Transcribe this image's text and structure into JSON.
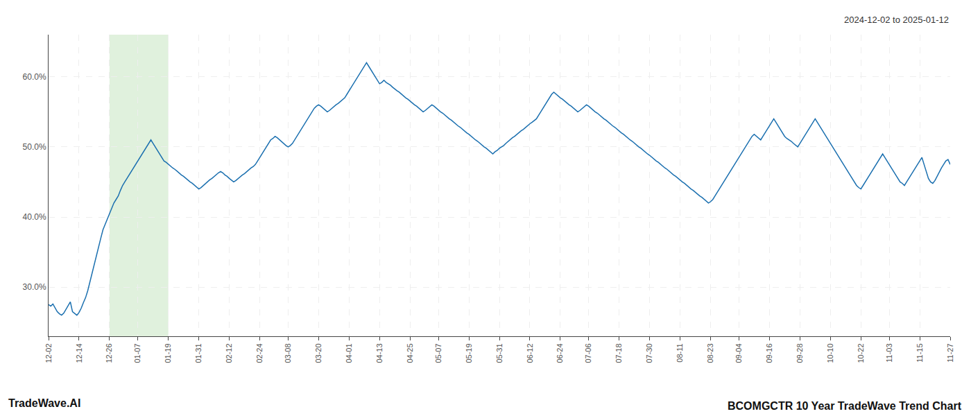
{
  "chart_data": {
    "type": "line",
    "title": "BCOMGCTR 10 Year TradeWave Trend Chart",
    "subtitle": "2024-12-02 to 2025-01-12",
    "annotations": [
      "TradeWave.AI"
    ],
    "categories": [
      "12-02",
      null,
      null,
      null,
      null,
      null,
      null,
      null,
      null,
      null,
      null,
      null,
      null,
      null,
      "12-14",
      null,
      null,
      null,
      null,
      null,
      null,
      null,
      null,
      null,
      null,
      null,
      null,
      null,
      "12-26",
      null,
      null,
      null,
      null,
      null,
      null,
      null,
      null,
      null,
      null,
      null,
      null,
      "01-07",
      null,
      null,
      null,
      null,
      null,
      null,
      null,
      null,
      null,
      null,
      null,
      null,
      null,
      "01-19",
      null,
      null,
      null,
      null,
      null,
      null,
      null,
      null,
      null,
      null,
      null,
      null,
      null,
      "01-31",
      null,
      null,
      null,
      null,
      null,
      null,
      null,
      null,
      null,
      null,
      null,
      null,
      null,
      "02-12",
      null,
      null,
      null,
      null,
      null,
      null,
      null,
      null,
      null,
      null,
      null,
      null,
      null,
      "02-24",
      null,
      null,
      null,
      null,
      null,
      null,
      null,
      null,
      null,
      null,
      null,
      null,
      "03-08",
      null,
      null,
      null,
      null,
      null,
      null,
      null,
      null,
      null,
      null,
      null,
      null,
      null,
      "03-20",
      null,
      null,
      null,
      null,
      null,
      null,
      null,
      null,
      null,
      null,
      null,
      null,
      null,
      "04-01",
      null,
      null,
      null,
      null,
      null,
      null,
      null,
      null,
      null,
      null,
      null,
      null,
      null,
      "04-13",
      null,
      null,
      null,
      null,
      null,
      null,
      null,
      null,
      null,
      null,
      null,
      null,
      null,
      "04-25",
      null,
      null,
      null,
      null,
      null,
      null,
      null,
      null,
      null,
      null,
      null,
      null,
      "05-07",
      null,
      null,
      null,
      null,
      null,
      null,
      null,
      null,
      null,
      null,
      null,
      null,
      null,
      "05-19",
      null,
      null,
      null,
      null,
      null,
      null,
      null,
      null,
      null,
      null,
      null,
      null,
      null,
      "05-31",
      null,
      null,
      null,
      null,
      null,
      null,
      null,
      null,
      null,
      null,
      null,
      null,
      null,
      "06-12",
      null,
      null,
      null,
      null,
      null,
      null,
      null,
      null,
      null,
      null,
      null,
      null,
      null,
      "06-24",
      null,
      null,
      null,
      null,
      null,
      null,
      null,
      null,
      null,
      null,
      null,
      null,
      "07-06",
      null,
      null,
      null,
      null,
      null,
      null,
      null,
      null,
      null,
      null,
      null,
      null,
      null,
      "07-18",
      null,
      null,
      null,
      null,
      null,
      null,
      null,
      null,
      null,
      null,
      null,
      null,
      null,
      "07-30",
      null,
      null,
      null,
      null,
      null,
      null,
      null,
      null,
      null,
      null,
      null,
      null,
      null,
      "08-11",
      null,
      null,
      null,
      null,
      null,
      null,
      null,
      null,
      null,
      null,
      null,
      null,
      null,
      "08-23",
      null,
      null,
      null,
      null,
      null,
      null,
      null,
      null,
      null,
      null,
      null,
      null,
      "09-04",
      null,
      null,
      null,
      null,
      null,
      null,
      null,
      null,
      null,
      null,
      null,
      null,
      null,
      "09-16",
      null,
      null,
      null,
      null,
      null,
      null,
      null,
      null,
      null,
      null,
      null,
      null,
      null,
      "09-28",
      null,
      null,
      null,
      null,
      null,
      null,
      null,
      null,
      null,
      null,
      null,
      null,
      null,
      "10-10",
      null,
      null,
      null,
      null,
      null,
      null,
      null,
      null,
      null,
      null,
      null,
      null,
      null,
      "10-22",
      null,
      null,
      null,
      null,
      null,
      null,
      null,
      null,
      null,
      null,
      null,
      null,
      "11-03",
      null,
      null,
      null,
      null,
      null,
      null,
      null,
      null,
      null,
      null,
      null,
      null,
      null,
      "11-15",
      null,
      null,
      null,
      null,
      null,
      null,
      null,
      null,
      null,
      null,
      null,
      null,
      null,
      "11-27"
    ],
    "values": [
      27.5,
      27.3,
      27.6,
      27.1,
      26.5,
      26.2,
      26.0,
      26.3,
      26.8,
      27.4,
      27.9,
      26.5,
      26.2,
      26.0,
      26.4,
      27.0,
      27.8,
      28.5,
      29.5,
      30.8,
      32.0,
      33.2,
      34.5,
      35.8,
      37.0,
      38.2,
      39.0,
      39.8,
      40.5,
      41.2,
      42.0,
      42.5,
      43.0,
      43.8,
      44.5,
      45.0,
      45.5,
      46.0,
      46.5,
      47.0,
      47.5,
      48.0,
      48.5,
      49.0,
      49.5,
      50.0,
      50.5,
      51.0,
      50.5,
      50.0,
      49.5,
      49.0,
      48.5,
      48.0,
      47.8,
      47.5,
      47.2,
      47.0,
      46.8,
      46.5,
      46.2,
      46.0,
      45.8,
      45.5,
      45.2,
      45.0,
      44.8,
      44.5,
      44.2,
      44.0,
      44.2,
      44.5,
      44.8,
      45.0,
      45.3,
      45.5,
      45.8,
      46.0,
      46.3,
      46.5,
      46.3,
      46.0,
      45.8,
      45.5,
      45.2,
      45.0,
      45.2,
      45.5,
      45.8,
      46.0,
      46.2,
      46.5,
      46.8,
      47.0,
      47.2,
      47.5,
      48.0,
      48.5,
      49.0,
      49.5,
      50.0,
      50.5,
      51.0,
      51.2,
      51.5,
      51.3,
      51.0,
      50.8,
      50.5,
      50.2,
      50.0,
      50.2,
      50.5,
      51.0,
      51.5,
      52.0,
      52.5,
      53.0,
      53.5,
      54.0,
      54.5,
      55.0,
      55.5,
      55.8,
      56.0,
      55.8,
      55.5,
      55.2,
      55.0,
      55.2,
      55.5,
      55.8,
      56.0,
      56.2,
      56.5,
      56.8,
      57.0,
      57.5,
      58.0,
      58.5,
      59.0,
      59.5,
      60.0,
      60.5,
      61.0,
      61.5,
      62.0,
      61.5,
      61.0,
      60.5,
      60.0,
      59.5,
      59.0,
      59.2,
      59.5,
      59.2,
      59.0,
      58.8,
      58.5,
      58.2,
      58.0,
      57.8,
      57.5,
      57.2,
      57.0,
      56.8,
      56.5,
      56.2,
      56.0,
      55.8,
      55.5,
      55.2,
      55.0,
      55.2,
      55.5,
      55.8,
      56.0,
      55.8,
      55.5,
      55.2,
      55.0,
      54.8,
      54.5,
      54.2,
      54.0,
      53.8,
      53.5,
      53.2,
      53.0,
      52.8,
      52.5,
      52.2,
      52.0,
      51.8,
      51.5,
      51.2,
      51.0,
      50.8,
      50.5,
      50.2,
      50.0,
      49.8,
      49.5,
      49.3,
      49.0,
      49.3,
      49.5,
      49.8,
      50.0,
      50.2,
      50.5,
      50.8,
      51.0,
      51.3,
      51.5,
      51.8,
      52.0,
      52.3,
      52.5,
      52.8,
      53.0,
      53.3,
      53.5,
      53.8,
      54.0,
      54.5,
      55.0,
      55.5,
      56.0,
      56.5,
      57.0,
      57.5,
      57.8,
      57.5,
      57.2,
      57.0,
      56.8,
      56.5,
      56.2,
      56.0,
      55.8,
      55.5,
      55.2,
      55.0,
      55.2,
      55.5,
      55.8,
      56.0,
      55.8,
      55.5,
      55.2,
      55.0,
      54.8,
      54.5,
      54.2,
      54.0,
      53.8,
      53.5,
      53.2,
      53.0,
      52.8,
      52.5,
      52.2,
      52.0,
      51.8,
      51.5,
      51.2,
      51.0,
      50.8,
      50.5,
      50.2,
      50.0,
      49.8,
      49.5,
      49.2,
      49.0,
      48.8,
      48.5,
      48.2,
      48.0,
      47.8,
      47.5,
      47.2,
      47.0,
      46.8,
      46.5,
      46.2,
      46.0,
      45.8,
      45.5,
      45.2,
      45.0,
      44.8,
      44.5,
      44.2,
      44.0,
      43.8,
      43.5,
      43.2,
      43.0,
      42.8,
      42.5,
      42.2,
      42.0,
      42.2,
      42.5,
      43.0,
      43.5,
      44.0,
      44.5,
      45.0,
      45.5,
      46.0,
      46.5,
      47.0,
      47.5,
      48.0,
      48.5,
      49.0,
      49.5,
      50.0,
      50.5,
      51.0,
      51.5,
      51.8,
      51.5,
      51.2,
      51.0,
      51.5,
      52.0,
      52.5,
      53.0,
      53.5,
      54.0,
      53.5,
      53.0,
      52.5,
      52.0,
      51.5,
      51.2,
      51.0,
      50.8,
      50.5,
      50.2,
      50.0,
      50.5,
      51.0,
      51.5,
      52.0,
      52.5,
      53.0,
      53.5,
      54.0,
      53.5,
      53.0,
      52.5,
      52.0,
      51.5,
      51.0,
      50.5,
      50.0,
      49.5,
      49.0,
      48.5,
      48.0,
      47.5,
      47.0,
      46.5,
      46.0,
      45.5,
      45.0,
      44.5,
      44.2,
      44.0,
      44.5,
      45.0,
      45.5,
      46.0,
      46.5,
      47.0,
      47.5,
      48.0,
      48.5,
      49.0,
      48.5,
      48.0,
      47.5,
      47.0,
      46.5,
      46.0,
      45.5,
      45.0,
      44.8,
      44.5,
      45.0,
      45.5,
      46.0,
      46.5,
      47.0,
      47.5,
      48.0,
      48.5,
      47.5,
      46.5,
      45.5,
      45.0,
      44.8,
      45.2,
      45.8,
      46.5,
      47.0,
      47.5,
      48.0,
      48.2,
      47.5
    ],
    "color": "#1a6faf",
    "shaded_span": {
      "from": "12-26",
      "to": "01-19",
      "color": "#d6ecd2"
    },
    "ylim": [
      23,
      66
    ],
    "yticks": [
      {
        "value": 30,
        "label": "30.0%"
      },
      {
        "value": 40,
        "label": "40.0%"
      },
      {
        "value": 50,
        "label": "50.0%"
      },
      {
        "value": 60,
        "label": "60.0%"
      }
    ],
    "grid": true
  }
}
